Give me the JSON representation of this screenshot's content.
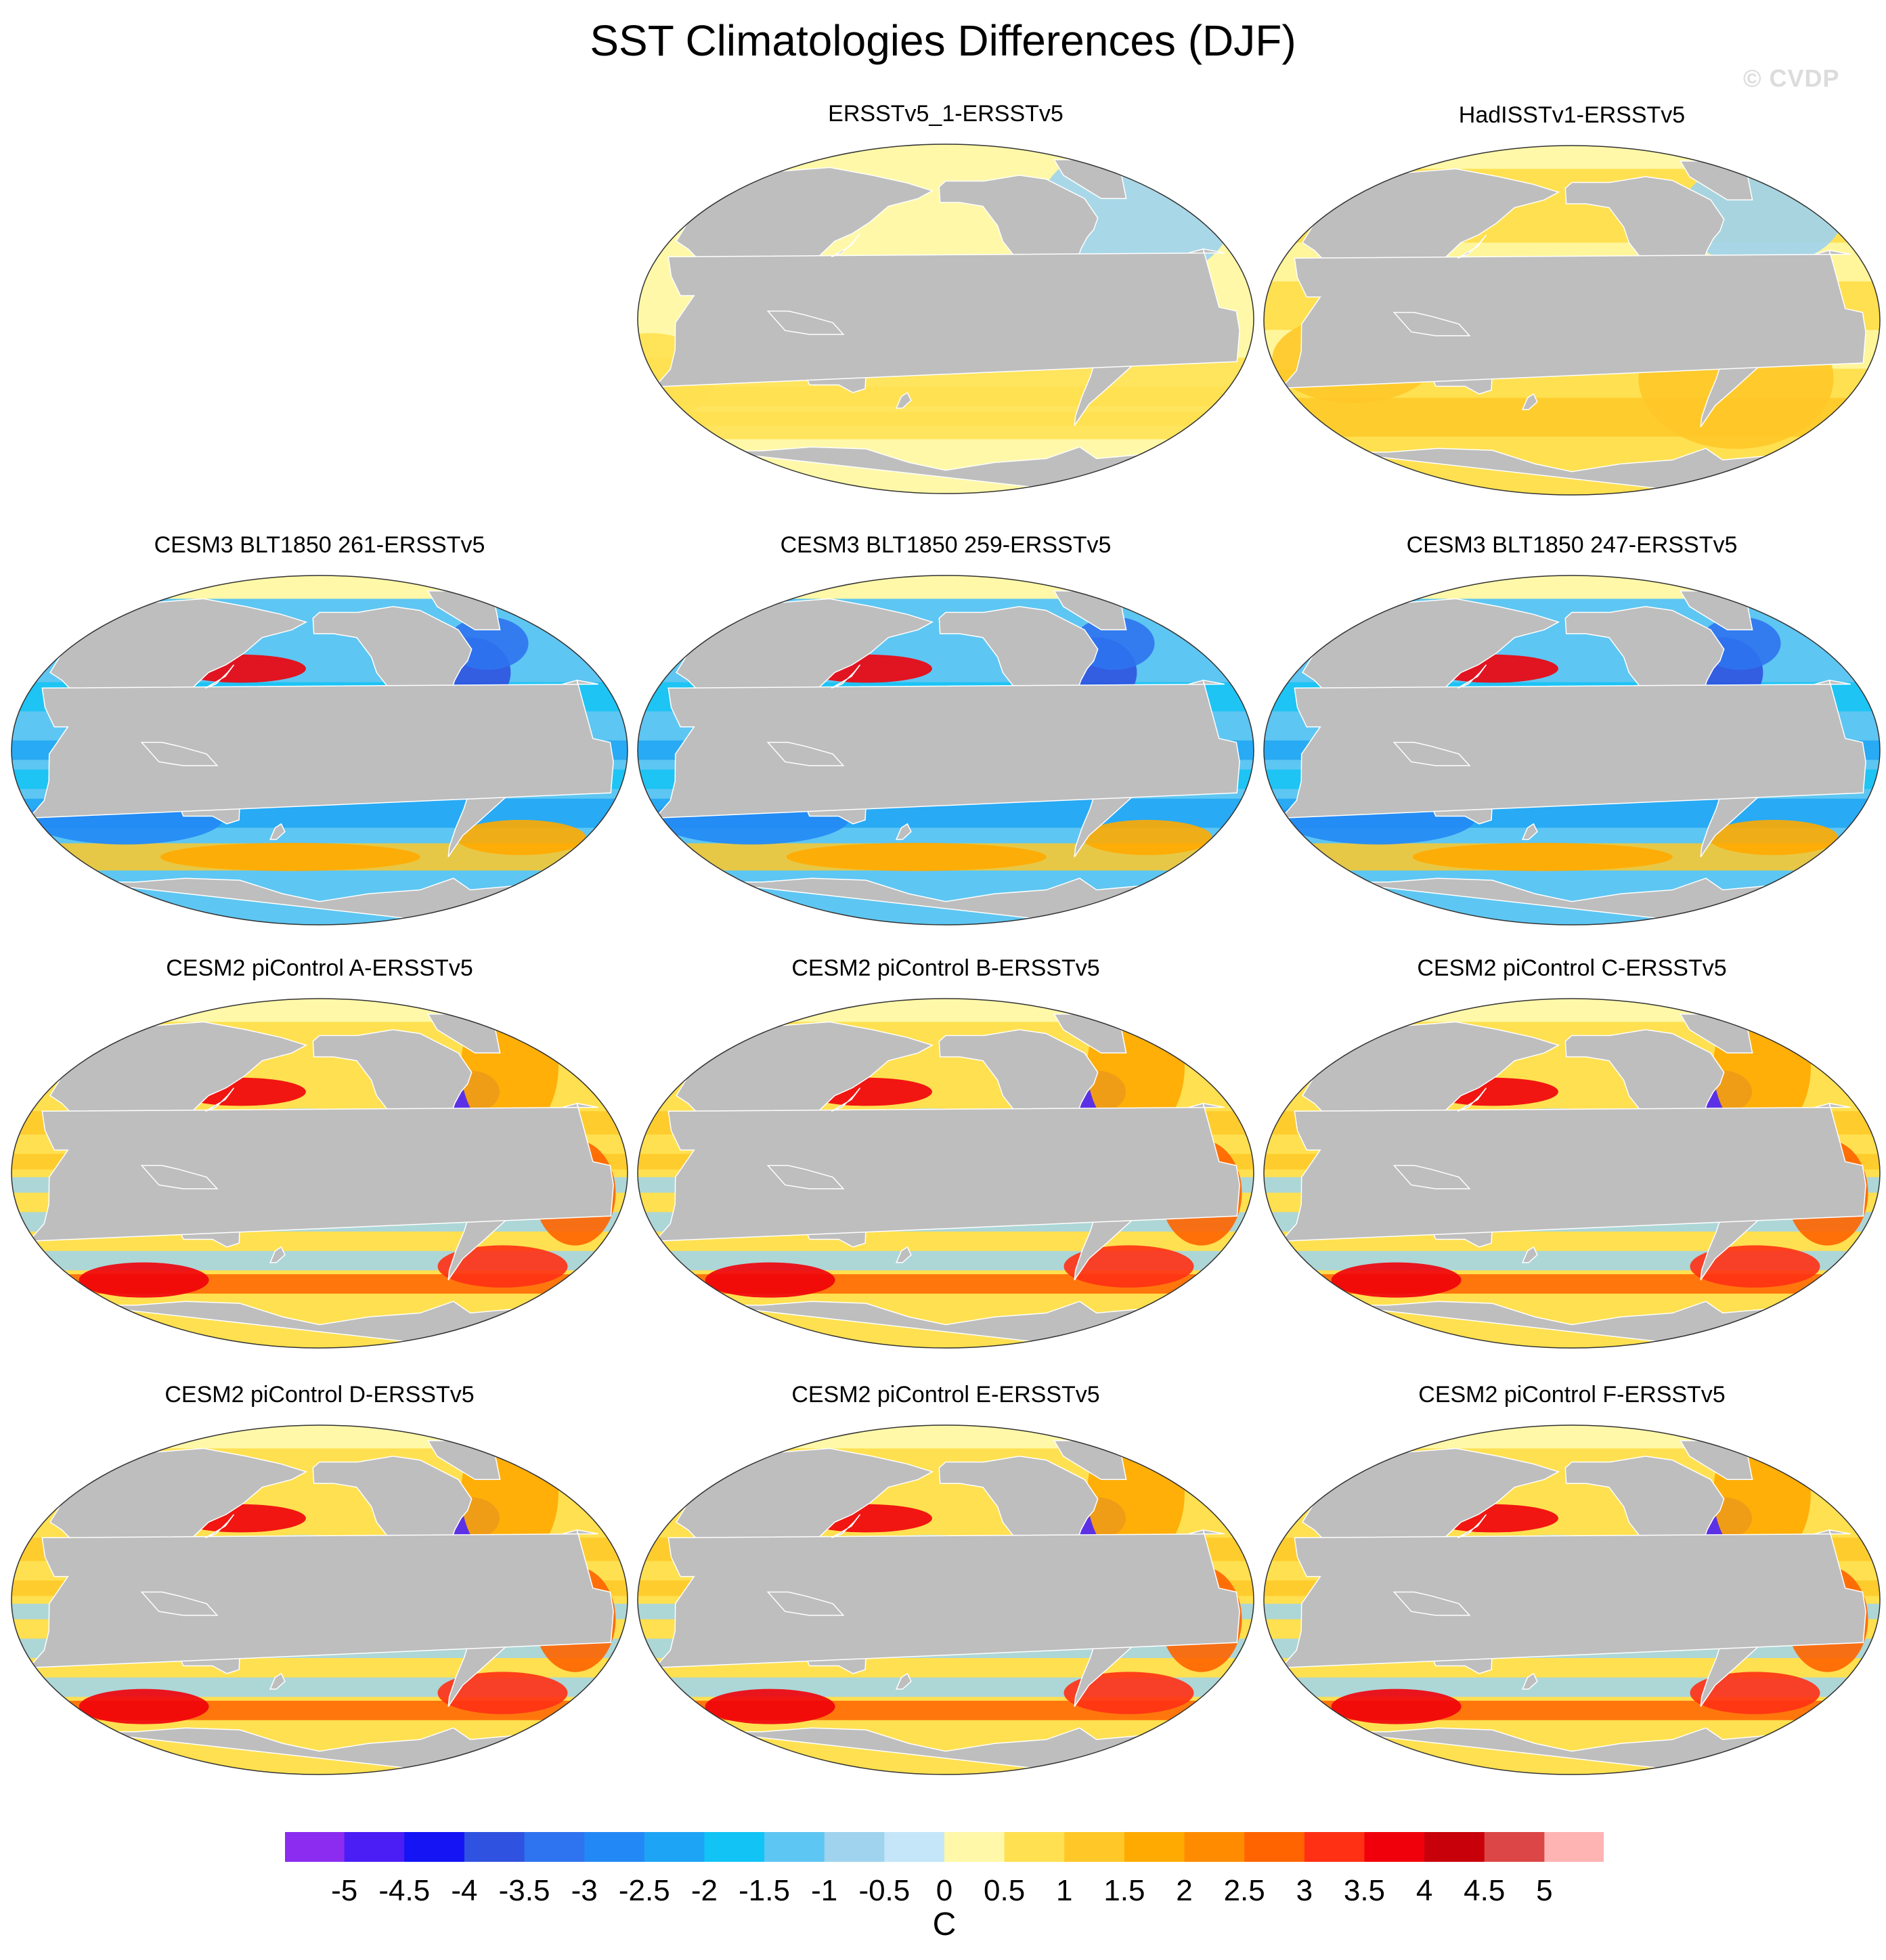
{
  "title": "SST Climatologies Differences (DJF)",
  "watermark": "© CVDP",
  "panels": [
    {
      "title": "ERSSTv5_1-ERSSTv5",
      "pattern": "near-zero-warm"
    },
    {
      "title": "HadISSTv1-ERSSTv5",
      "pattern": "slight-warm"
    },
    {
      "title": "CESM3 BLT1850 261-ERSSTv5",
      "pattern": "cool-bias"
    },
    {
      "title": "CESM3 BLT1850 259-ERSSTv5",
      "pattern": "cool-bias"
    },
    {
      "title": "CESM3 BLT1850 247-ERSSTv5",
      "pattern": "cool-bias"
    },
    {
      "title": "CESM2 piControl A-ERSSTv5",
      "pattern": "warm-bias"
    },
    {
      "title": "CESM2 piControl B-ERSSTv5",
      "pattern": "warm-bias"
    },
    {
      "title": "CESM2 piControl C-ERSSTv5",
      "pattern": "warm-bias"
    },
    {
      "title": "CESM2 piControl D-ERSSTv5",
      "pattern": "warm-bias"
    },
    {
      "title": "CESM2 piControl E-ERSSTv5",
      "pattern": "warm-bias"
    },
    {
      "title": "CESM2 piControl F-ERSSTv5",
      "pattern": "warm-bias"
    }
  ],
  "colorbar": {
    "units": "C",
    "levels": [
      "-5",
      "-4.5",
      "-4",
      "-3.5",
      "-3",
      "-2.5",
      "-2",
      "-1.5",
      "-1",
      "-0.5",
      "0",
      "0.5",
      "1",
      "1.5",
      "2",
      "2.5",
      "3",
      "3.5",
      "4",
      "4.5",
      "5"
    ],
    "colors": [
      "#8b2cf0",
      "#4a1ef5",
      "#1414f5",
      "#2f52e0",
      "#2e73f0",
      "#2288f5",
      "#1ea4f5",
      "#12c3f5",
      "#5ec6f2",
      "#9fd3ee",
      "#c4e6f8",
      "#fff8a8",
      "#ffe050",
      "#ffc828",
      "#ffaa00",
      "#ff8c00",
      "#ff6400",
      "#ff3014",
      "#f0000a",
      "#c8000a",
      "#dc4646",
      "#ffb4b4"
    ],
    "land_color": "#bebebe",
    "ocean_neutral": "#fff8a8"
  }
}
